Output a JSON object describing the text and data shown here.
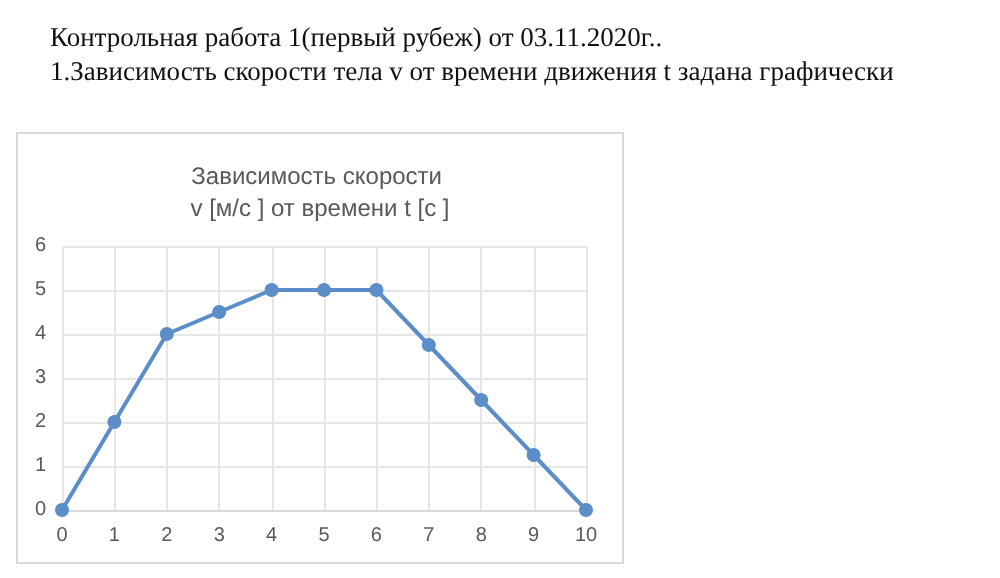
{
  "chart_data": {
    "type": "line",
    "title": "Зависимость скорости v [м/с ] от времени t [с ]",
    "annotations": [
      "Контрольная работа 1(первый рубеж) от 03.11.2020г..",
      "1.Зависимость скорости тела v от времени движения t задана графически"
    ],
    "categories": [
      "0",
      "1",
      "2",
      "3",
      "4",
      "5",
      "6",
      "7",
      "8",
      "9",
      "10"
    ],
    "series": [
      {
        "color": "#5b8ec9",
        "values": [
          0,
          2,
          4,
          4.5,
          5,
          5,
          5,
          3.75,
          2.5,
          1.25,
          0
        ]
      }
    ],
    "ylim": [
      0,
      6
    ],
    "yticks": [
      0,
      1,
      2,
      3,
      4,
      5,
      6
    ],
    "grid": true,
    "marker": "circle",
    "line_style": "solid"
  }
}
